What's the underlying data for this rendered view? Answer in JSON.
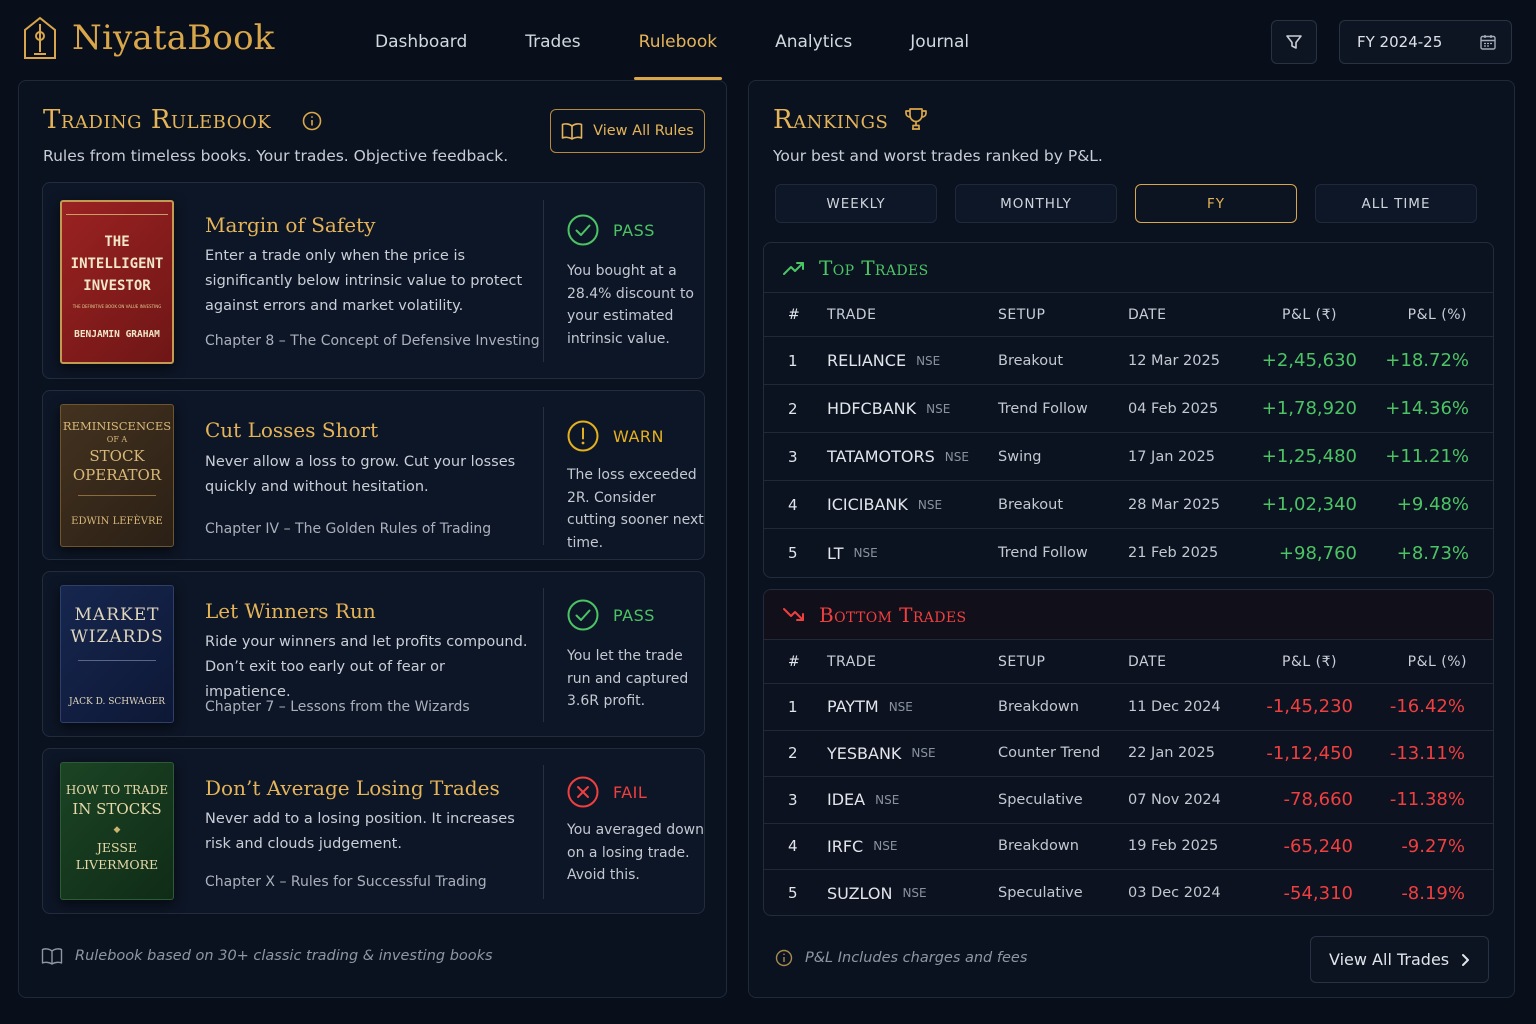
{
  "app": {
    "name": "NiyataBook"
  },
  "nav": [
    {
      "label": "Dashboard",
      "active": false
    },
    {
      "label": "Trades",
      "active": false
    },
    {
      "label": "Rulebook",
      "active": true
    },
    {
      "label": "Analytics",
      "active": false
    },
    {
      "label": "Journal",
      "active": false
    }
  ],
  "header": {
    "fiscal_year": "FY 2024-25",
    "filter_icon": "filter-icon",
    "calendar_icon": "calendar-icon"
  },
  "rulebook": {
    "title": "Trading Rulebook",
    "subtitle": "Rules from timeless books. Your trades. Objective feedback.",
    "view_all_label": "View All Rules",
    "rules": [
      {
        "book": {
          "title_lines": [
            "THE",
            "INTELLIGENT",
            "INVESTOR"
          ],
          "tagline": "THE DEFINITIVE BOOK ON VALUE INVESTING",
          "author": "BENJAMIN GRAHAM",
          "color": "#8e1f1f"
        },
        "title": "Margin of Safety",
        "description": "Enter a trade only when the price is significantly below intrinsic value to protect against errors and market volatility.",
        "chapter": "Chapter 8 – The Concept of Defensive Investing",
        "status": "PASS",
        "note": "You bought at a 28.4% discount to your estimated intrinsic value."
      },
      {
        "book": {
          "title_lines": [
            "REMINISCENCES",
            "OF A",
            "STOCK",
            "OPERATOR"
          ],
          "author": "EDWIN LEFÈVRE",
          "color": "#3b2c1f"
        },
        "title": "Cut Losses Short",
        "description": "Never allow a loss to grow. Cut your losses quickly and without hesitation.",
        "chapter": "Chapter IV – The Golden Rules of Trading",
        "status": "WARN",
        "note": "The loss exceeded 2R. Consider cutting sooner next time."
      },
      {
        "book": {
          "title_lines": [
            "MARKET",
            "WIZARDS"
          ],
          "author": "JACK D. SCHWAGER",
          "color": "#14234a"
        },
        "title": "Let Winners Run",
        "description": "Ride your winners and let profits compound. Don’t exit too early out of fear or impatience.",
        "chapter": "Chapter 7 – Lessons from the Wizards",
        "status": "PASS",
        "note": "You let the trade run and captured 3.6R profit."
      },
      {
        "book": {
          "title_lines": [
            "HOW TO TRADE",
            "IN STOCKS"
          ],
          "author_lines": [
            "JESSE",
            "LIVERMORE"
          ],
          "color": "#17391f"
        },
        "title": "Don’t Average Losing Trades",
        "description": "Never add to a losing position. It increases risk and clouds judgement.",
        "chapter": "Chapter X – Rules for Successful Trading",
        "status": "FAIL",
        "note": "You averaged down on a losing trade. Avoid this."
      }
    ],
    "footer": "Rulebook based on 30+ classic trading & investing books"
  },
  "rankings": {
    "title": "Rankings",
    "subtitle": "Your best and worst trades ranked by P&L.",
    "tabs": [
      {
        "label": "WEEKLY",
        "active": false
      },
      {
        "label": "MONTHLY",
        "active": false
      },
      {
        "label": "FY",
        "active": true
      },
      {
        "label": "ALL TIME",
        "active": false
      }
    ],
    "columns": [
      "#",
      "TRADE",
      "SETUP",
      "DATE",
      "P&L (₹)",
      "P&L (%)"
    ],
    "top": {
      "title": "Top Trades",
      "rows": [
        {
          "rank": "1",
          "symbol": "RELIANCE",
          "exchange": "NSE",
          "setup": "Breakout",
          "date": "12 Mar 2025",
          "pnl": "+2,45,630",
          "pct": "+18.72%"
        },
        {
          "rank": "2",
          "symbol": "HDFCBANK",
          "exchange": "NSE",
          "setup": "Trend Follow",
          "date": "04 Feb 2025",
          "pnl": "+1,78,920",
          "pct": "+14.36%"
        },
        {
          "rank": "3",
          "symbol": "TATAMOTORS",
          "exchange": "NSE",
          "setup": "Swing",
          "date": "17 Jan 2025",
          "pnl": "+1,25,480",
          "pct": "+11.21%"
        },
        {
          "rank": "4",
          "symbol": "ICICIBANK",
          "exchange": "NSE",
          "setup": "Breakout",
          "date": "28 Mar 2025",
          "pnl": "+1,02,340",
          "pct": "+9.48%"
        },
        {
          "rank": "5",
          "symbol": "LT",
          "exchange": "NSE",
          "setup": "Trend Follow",
          "date": "21 Feb 2025",
          "pnl": "+98,760",
          "pct": "+8.73%"
        }
      ]
    },
    "bottom": {
      "title": "Bottom Trades",
      "rows": [
        {
          "rank": "1",
          "symbol": "PAYTM",
          "exchange": "NSE",
          "setup": "Breakdown",
          "date": "11 Dec 2024",
          "pnl": "-1,45,230",
          "pct": "-16.42%"
        },
        {
          "rank": "2",
          "symbol": "YESBANK",
          "exchange": "NSE",
          "setup": "Counter Trend",
          "date": "22 Jan 2025",
          "pnl": "-1,12,450",
          "pct": "-13.11%"
        },
        {
          "rank": "3",
          "symbol": "IDEA",
          "exchange": "NSE",
          "setup": "Speculative",
          "date": "07 Nov 2024",
          "pnl": "-78,660",
          "pct": "-11.38%"
        },
        {
          "rank": "4",
          "symbol": "IRFC",
          "exchange": "NSE",
          "setup": "Breakdown",
          "date": "19 Feb 2025",
          "pnl": "-65,240",
          "pct": "-9.27%"
        },
        {
          "rank": "5",
          "symbol": "SUZLON",
          "exchange": "NSE",
          "setup": "Speculative",
          "date": "03 Dec 2024",
          "pnl": "-54,310",
          "pct": "-8.19%"
        }
      ]
    },
    "footer_note": "P&L Includes charges and fees",
    "view_all_label": "View All Trades"
  },
  "colors": {
    "accent": "#d9a64a",
    "positive": "#4cc464",
    "negative": "#ef3f3f",
    "warn": "#e5b020",
    "background": "#080f1b"
  }
}
